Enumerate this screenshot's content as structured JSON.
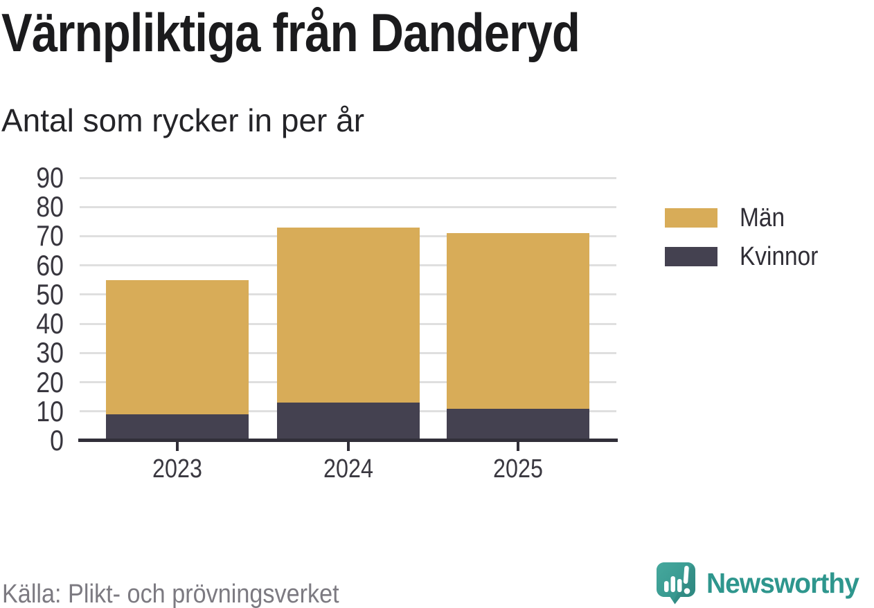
{
  "header": {
    "title": "Värnpliktiga från Danderyd",
    "subtitle": "Antal som rycker in per år"
  },
  "chart_data": {
    "type": "bar",
    "stacked": true,
    "title": "Värnpliktiga från Danderyd",
    "subtitle": "Antal som rycker in per år",
    "categories": [
      "2023",
      "2024",
      "2025"
    ],
    "series": [
      {
        "name": "Män",
        "color": "#d8ac58",
        "values": [
          46,
          60,
          60
        ]
      },
      {
        "name": "Kvinnor",
        "color": "#444150",
        "values": [
          9,
          13,
          11
        ]
      }
    ],
    "stack_totals": [
      55,
      73,
      71
    ],
    "xlabel": "",
    "ylabel": "Antal som rycker in per år",
    "ylim": [
      0,
      90
    ],
    "yticks": [
      0,
      10,
      20,
      30,
      40,
      50,
      60,
      70,
      80,
      90
    ],
    "grid": "horizontal",
    "legend_position": "right"
  },
  "legend": {
    "items": [
      {
        "label": "Män",
        "color": "#d8ac58"
      },
      {
        "label": "Kvinnor",
        "color": "#444150"
      }
    ]
  },
  "footer": {
    "source": "Källa: Plikt- och prövningsverket",
    "brand": "Newsworthy"
  },
  "colors": {
    "bar_men": "#d8ac58",
    "bar_women": "#444150",
    "axis": "#312f39",
    "gridline": "#dfdfdf",
    "source_text": "#7c7a81",
    "brand_teal": "#2e968d"
  }
}
